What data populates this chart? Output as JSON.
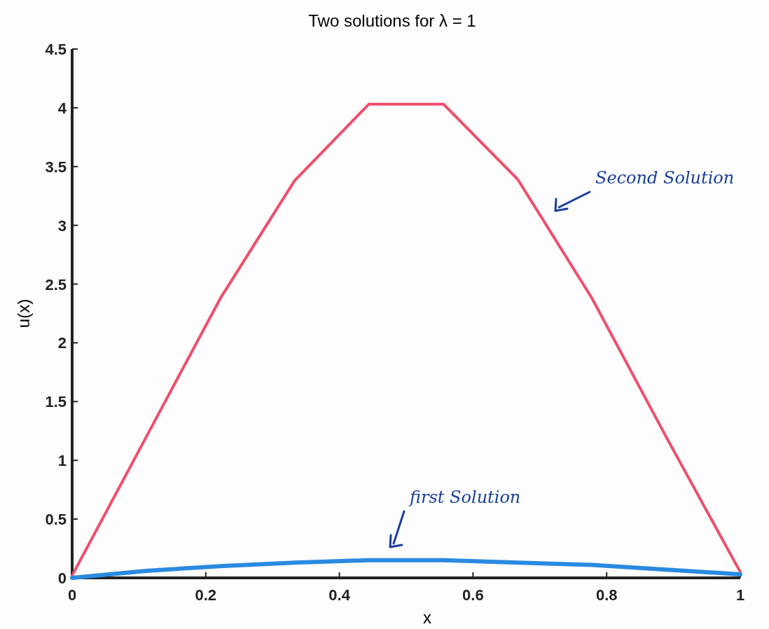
{
  "chart_data": {
    "type": "line",
    "title": "Two solutions for λ = 1",
    "xlabel": "x",
    "ylabel": "u(x)",
    "x": [
      0,
      0.111,
      0.222,
      0.333,
      0.444,
      0.556,
      0.667,
      0.778,
      0.889,
      1
    ],
    "series": [
      {
        "color": "#ee4f6c",
        "values": [
          0.02,
          1.2,
          2.38,
          3.38,
          4.03,
          4.03,
          3.39,
          2.38,
          1.2,
          0.05
        ]
      },
      {
        "color": "#2a8ae0",
        "values": [
          0,
          0.06,
          0.1,
          0.13,
          0.15,
          0.15,
          0.13,
          0.11,
          0.07,
          0.03
        ]
      }
    ],
    "xlim": [
      0,
      1
    ],
    "xticks": [
      0,
      0.2,
      0.4,
      0.6,
      0.8,
      1
    ],
    "ylim": [
      0,
      4.5
    ],
    "yticks": [
      0,
      0.5,
      1,
      1.5,
      2,
      2.5,
      3,
      3.5,
      4,
      4.5
    ],
    "annotations": [
      "Second Solution",
      "first Solution"
    ],
    "grid": false,
    "marker": "none",
    "line_style": "solid"
  }
}
